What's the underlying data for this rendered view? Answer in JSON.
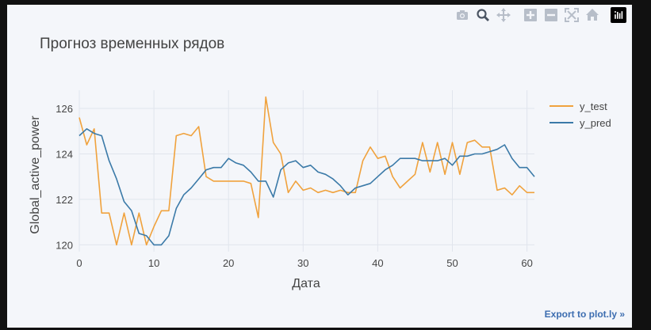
{
  "modebar": {
    "icons": [
      "camera-icon",
      "zoom-icon",
      "pan-icon",
      "zoom-in-icon",
      "zoom-out-icon",
      "autoscale-icon",
      "reset-axes-icon",
      "plotly-logo-icon"
    ]
  },
  "export_link": {
    "label": "Export to plot.ly »"
  },
  "colors": {
    "y_test": "#f0a23d",
    "y_pred": "#3b7aa8",
    "background": "#f4f6fa",
    "grid": "#e1e5ed"
  },
  "chart_data": {
    "type": "line",
    "title": "Прогноз временных рядов",
    "xlabel": "Дата",
    "ylabel": "Global_active_power",
    "xlim": [
      0,
      61
    ],
    "ylim": [
      119.7,
      126.8
    ],
    "xticks": [
      0,
      10,
      20,
      30,
      40,
      50,
      60
    ],
    "yticks": [
      120,
      122,
      124,
      126
    ],
    "grid": true,
    "legend": "top-right",
    "x": [
      0,
      1,
      2,
      3,
      4,
      5,
      6,
      7,
      8,
      9,
      10,
      11,
      12,
      13,
      14,
      15,
      16,
      17,
      18,
      19,
      20,
      21,
      22,
      23,
      24,
      25,
      26,
      27,
      28,
      29,
      30,
      31,
      32,
      33,
      34,
      35,
      36,
      37,
      38,
      39,
      40,
      41,
      42,
      43,
      44,
      45,
      46,
      47,
      48,
      49,
      50,
      51,
      52,
      53,
      54,
      55,
      56,
      57,
      58,
      59,
      60,
      61
    ],
    "series": [
      {
        "name": "y_test",
        "color": "#f0a23d",
        "values": [
          125.6,
          124.4,
          125.1,
          121.4,
          121.4,
          120.0,
          121.4,
          120.0,
          121.4,
          120.0,
          120.8,
          121.5,
          121.5,
          124.8,
          124.9,
          124.8,
          125.2,
          123.0,
          122.8,
          122.8,
          122.8,
          122.8,
          122.8,
          122.7,
          121.2,
          126.5,
          124.5,
          124.0,
          122.3,
          122.8,
          122.4,
          122.5,
          122.3,
          122.4,
          122.3,
          122.4,
          122.3,
          122.3,
          123.7,
          124.3,
          123.8,
          123.9,
          123.0,
          122.5,
          122.8,
          123.1,
          124.5,
          123.2,
          124.5,
          123.1,
          124.5,
          123.1,
          124.5,
          124.6,
          124.3,
          124.3,
          122.4,
          122.5,
          122.2,
          122.6,
          122.3,
          122.3
        ],
        "_note": ""
      },
      {
        "name": "y_pred",
        "color": "#3b7aa8",
        "values": [
          124.8,
          125.1,
          124.9,
          124.8,
          123.7,
          122.9,
          121.9,
          121.5,
          120.5,
          120.4,
          120.0,
          120.0,
          120.4,
          121.6,
          122.2,
          122.5,
          122.9,
          123.3,
          123.4,
          123.4,
          123.8,
          123.6,
          123.5,
          123.2,
          122.8,
          122.8,
          122.1,
          123.3,
          123.6,
          123.7,
          123.4,
          123.5,
          123.2,
          123.1,
          122.9,
          122.6,
          122.2,
          122.5,
          122.6,
          122.7,
          123.0,
          123.3,
          123.5,
          123.8,
          123.8,
          123.8,
          123.7,
          123.7,
          123.7,
          123.8,
          123.5,
          123.9,
          123.9,
          124.0,
          124.0,
          124.1,
          124.2,
          124.4,
          123.8,
          123.4,
          123.4,
          123.0
        ]
      }
    ]
  }
}
